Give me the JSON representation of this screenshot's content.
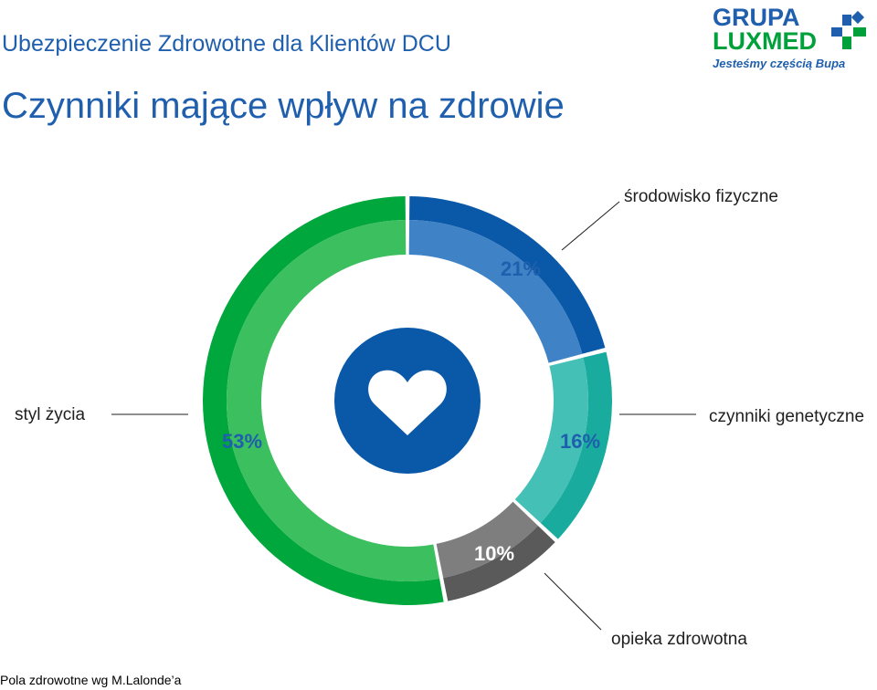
{
  "header": {
    "subtitle": "Ubezpieczenie Zdrowotne dla Klientów DCU",
    "title": "Czynniki mające wpływ na zdrowie"
  },
  "logo": {
    "line1": "GRUPA",
    "line2": "LUXMED",
    "tagline": "Jesteśmy częścią Bupa"
  },
  "footer": {
    "note": "Pola zdrowotne wg M.Lalonde’a"
  },
  "center_icon": "heart-icon",
  "colors": {
    "brand_blue": "#1f5fad",
    "brand_green": "#00a03a"
  },
  "chart_data": {
    "type": "pie",
    "variant": "donut",
    "title": "",
    "slices": [
      {
        "label": "środowisko fizyczne",
        "value": 21,
        "value_label": "21%",
        "color_outer": "#0a58a8",
        "color_inner": "#3f82c6",
        "text_color": "#1f5fad"
      },
      {
        "label": "czynniki genetyczne",
        "value": 16,
        "value_label": "16%",
        "color_outer": "#18ab9e",
        "color_inner": "#44c0b6",
        "text_color": "#1f5fad"
      },
      {
        "label": "opieka zdrowotna",
        "value": 10,
        "value_label": "10%",
        "color_outer": "#5a5a5a",
        "color_inner": "#7e7e7e",
        "text_color": "#ffffff"
      },
      {
        "label": "styl życia",
        "value": 53,
        "value_label": "53%",
        "color_outer": "#00a73c",
        "color_inner": "#3cbf5e",
        "text_color": "#1f5fad"
      }
    ]
  }
}
